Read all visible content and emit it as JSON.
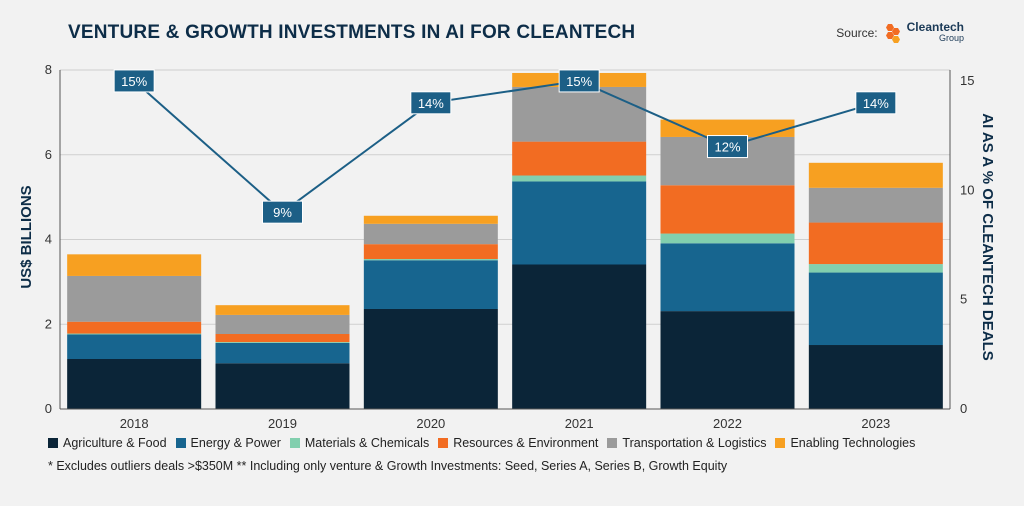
{
  "header": {
    "title": "VENTURE & GROWTH INVESTMENTS IN AI FOR CLEANTECH",
    "source_label": "Source:",
    "logo_main": "Cleantech",
    "logo_sub": "Group"
  },
  "footnote": "* Excludes outliers deals >$350M  ** Including only venture & Growth Investments: Seed, Series A, Series B, Growth Equity",
  "colors": {
    "Agriculture & Food": "#0b2538",
    "Energy & Power": "#17658f",
    "Materials & Chemicals": "#82cfae",
    "Resources & Environment": "#f26c22",
    "Transportation & Logistics": "#9b9b9b",
    "Enabling Technologies": "#f7a021",
    "line": "#1c5f86",
    "logo": "#f26c22"
  },
  "chart_data": {
    "type": "bar",
    "stacked": true,
    "categories": [
      "2018",
      "2019",
      "2020",
      "2021",
      "2022",
      "2023"
    ],
    "ylabel": "US$ BILLIONS",
    "ylim": [
      0,
      8
    ],
    "yticks": [
      "0",
      "2",
      "4",
      "6",
      "8"
    ],
    "y2label": "AI AS A % OF CLEANTECH DEALS",
    "y2lim": [
      0,
      15.5
    ],
    "y2ticks": [
      "0",
      "5",
      "10",
      "15"
    ],
    "grid": "horizontal",
    "legend_position": "bottom",
    "series": [
      {
        "name": "Agriculture & Food",
        "values": [
          1.18,
          1.08,
          2.36,
          3.41,
          2.31,
          1.51
        ]
      },
      {
        "name": "Energy & Power",
        "values": [
          0.58,
          0.48,
          1.15,
          1.96,
          1.6,
          1.71
        ]
      },
      {
        "name": "Materials & Chemicals",
        "values": [
          0.02,
          0.02,
          0.03,
          0.14,
          0.23,
          0.2
        ]
      },
      {
        "name": "Resources & Environment",
        "values": [
          0.28,
          0.19,
          0.35,
          0.8,
          1.14,
          0.98
        ]
      },
      {
        "name": "Transportation & Logistics",
        "values": [
          1.08,
          0.45,
          0.48,
          1.29,
          1.14,
          0.82
        ]
      },
      {
        "name": "Enabling Technologies",
        "values": [
          0.51,
          0.23,
          0.19,
          0.33,
          0.41,
          0.59
        ]
      }
    ],
    "line_series": {
      "name": "AI as % of cleantech deals",
      "axis": "right",
      "values": [
        15,
        9,
        14,
        15,
        12,
        14
      ],
      "labels": [
        "15%",
        "9%",
        "14%",
        "15%",
        "12%",
        "14%"
      ]
    }
  }
}
